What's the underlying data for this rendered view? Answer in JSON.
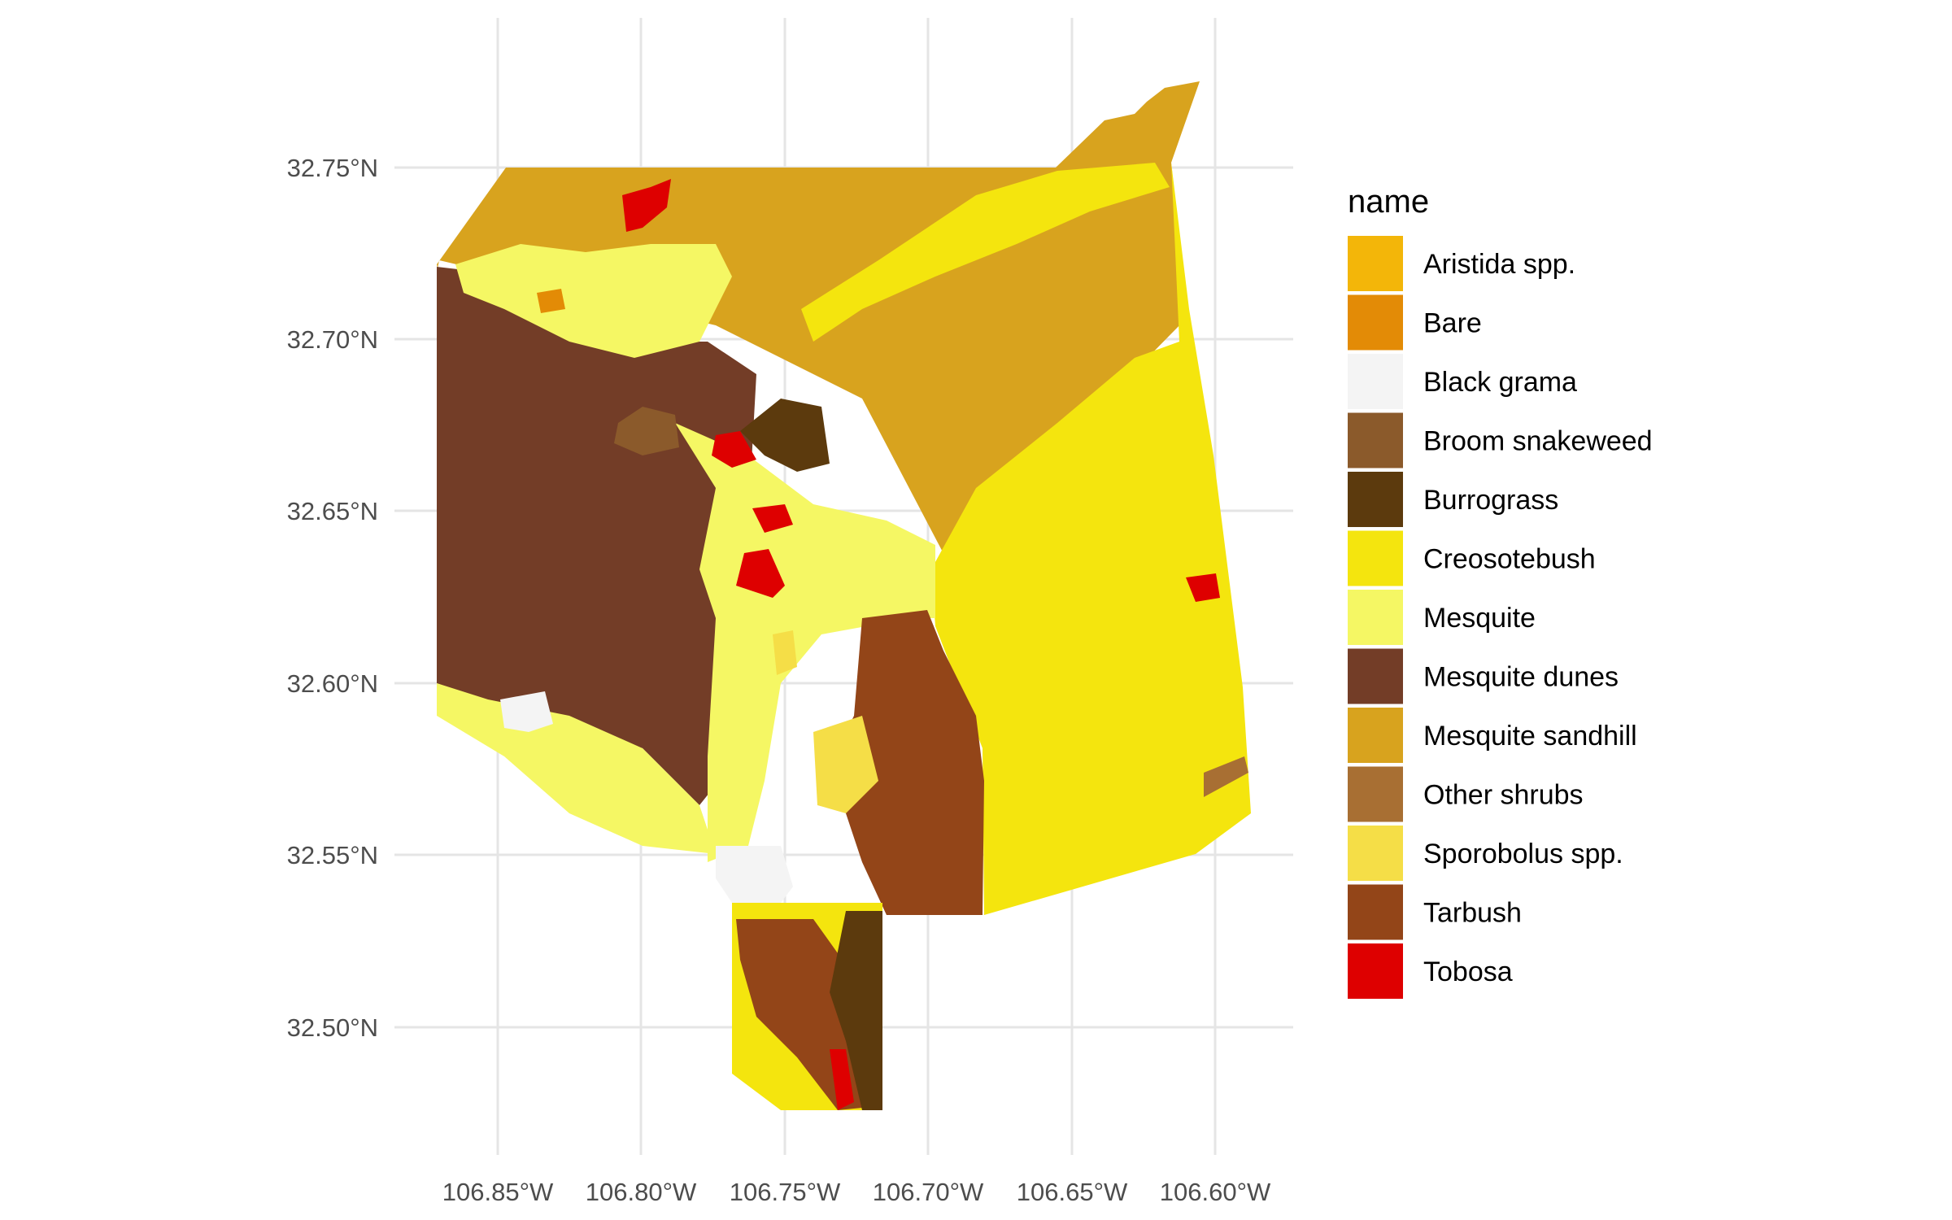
{
  "map": {
    "y_ticks": [
      "32.75°N",
      "32.70°N",
      "32.65°N",
      "32.60°N",
      "32.55°N",
      "32.50°N"
    ],
    "x_ticks": [
      "106.85°W",
      "106.80°W",
      "106.75°W",
      "106.70°W",
      "106.65°W",
      "106.60°W"
    ],
    "legend": {
      "title": "name",
      "items": [
        {
          "label": "Aristida spp.",
          "color": "#F3B609"
        },
        {
          "label": "Bare",
          "color": "#E38B06"
        },
        {
          "label": "Black grama",
          "color": "#F4F4F4"
        },
        {
          "label": "Broom snakeweed",
          "color": "#8B5A2B"
        },
        {
          "label": "Burrograss",
          "color": "#5C3A0D"
        },
        {
          "label": "Creosotebush",
          "color": "#F4E50E"
        },
        {
          "label": "Mesquite",
          "color": "#F5F764"
        },
        {
          "label": "Mesquite dunes",
          "color": "#733D27"
        },
        {
          "label": "Mesquite sandhill",
          "color": "#D8A31E"
        },
        {
          "label": "Other shrubs",
          "color": "#A86F33"
        },
        {
          "label": "Sporobolus spp.",
          "color": "#F5DE47"
        },
        {
          "label": "Tarbush",
          "color": "#934518"
        },
        {
          "label": "Tobosa",
          "color": "#DE0000"
        }
      ]
    }
  }
}
